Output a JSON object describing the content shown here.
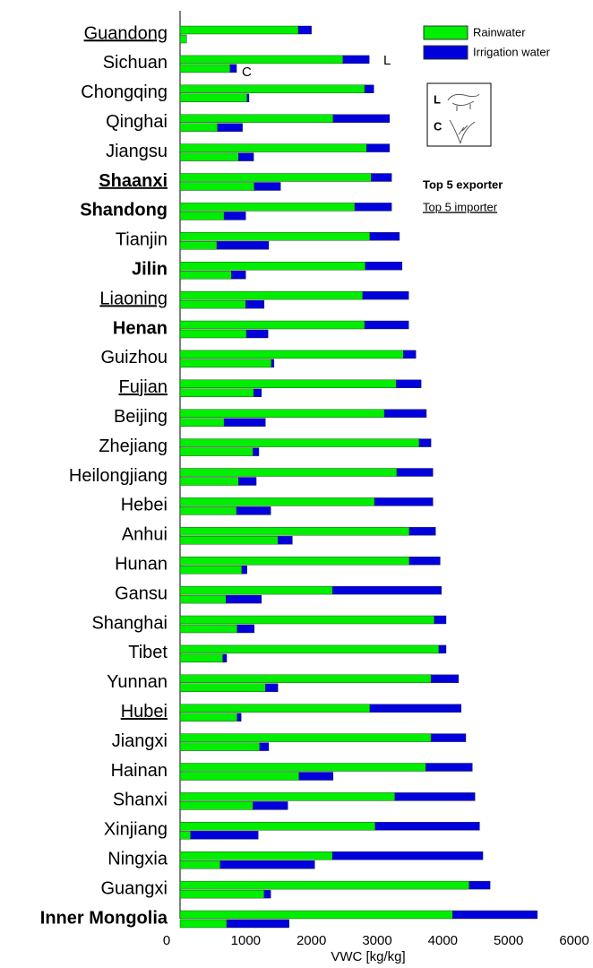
{
  "chart_data": {
    "type": "bar",
    "orientation": "horizontal",
    "stacked": true,
    "xlabel": "VWC [kg/kg]",
    "xlim": [
      0,
      6000
    ],
    "xticks": [
      0,
      1000,
      2000,
      3000,
      4000,
      5000,
      6000
    ],
    "categories": [
      "Guandong",
      "Sichuan",
      "Chongqing",
      "Qinghai",
      "Jiangsu",
      "Shaanxi",
      "Shandong",
      "Tianjin",
      "Jilin",
      "Liaoning",
      "Henan",
      "Guizhou",
      "Fujian",
      "Beijing",
      "Zhejiang",
      "Heilongjiang",
      "Hebei",
      "Anhui",
      "Hunan",
      "Gansu",
      "Shanghai",
      "Tibet",
      "Yunnan",
      "Hubei",
      "Jiangxi",
      "Hainan",
      "Shanxi",
      "Xinjiang",
      "Ningxia",
      "Guangxi",
      "Inner Mongolia"
    ],
    "bold": [
      false,
      false,
      false,
      false,
      false,
      true,
      true,
      false,
      true,
      false,
      true,
      false,
      false,
      false,
      false,
      false,
      false,
      false,
      false,
      false,
      false,
      false,
      false,
      false,
      false,
      false,
      false,
      false,
      false,
      false,
      true
    ],
    "underline": [
      true,
      false,
      false,
      false,
      false,
      true,
      false,
      false,
      false,
      true,
      false,
      false,
      true,
      false,
      false,
      false,
      false,
      false,
      false,
      false,
      false,
      false,
      false,
      true,
      false,
      false,
      false,
      false,
      false,
      false,
      false
    ],
    "bar_labels": [
      "L",
      "C"
    ],
    "series": [
      {
        "name": "Rainwater",
        "color": "#00ee00",
        "values": {
          "L": [
            1800,
            2480,
            2810,
            2330,
            2840,
            2910,
            2660,
            2890,
            2820,
            2780,
            2810,
            3400,
            3290,
            3110,
            3640,
            3300,
            2960,
            3490,
            3490,
            2320,
            3870,
            3940,
            3820,
            2890,
            3820,
            3740,
            3270,
            2970,
            2320,
            4400,
            4150
          ],
          "C": [
            100,
            760,
            1020,
            570,
            890,
            1130,
            670,
            560,
            780,
            1000,
            1010,
            1390,
            1120,
            670,
            1110,
            890,
            860,
            1490,
            940,
            700,
            870,
            650,
            1300,
            870,
            1210,
            1810,
            1110,
            160,
            610,
            1280,
            710
          ]
        }
      },
      {
        "name": "Irrigation water",
        "color": "#0000dd",
        "values": {
          "L": [
            200,
            400,
            140,
            860,
            350,
            310,
            560,
            450,
            560,
            700,
            670,
            190,
            380,
            640,
            180,
            550,
            890,
            400,
            470,
            1660,
            180,
            110,
            420,
            1390,
            530,
            710,
            1220,
            1590,
            2290,
            320,
            1290
          ],
          "C": [
            0,
            100,
            30,
            380,
            230,
            400,
            330,
            790,
            220,
            280,
            330,
            40,
            120,
            630,
            90,
            270,
            520,
            220,
            80,
            540,
            260,
            60,
            190,
            60,
            140,
            520,
            530,
            1030,
            1440,
            100,
            950
          ]
        }
      }
    ],
    "legend_notes": [
      "Top 5 exporter",
      "Top 5 importer"
    ]
  }
}
